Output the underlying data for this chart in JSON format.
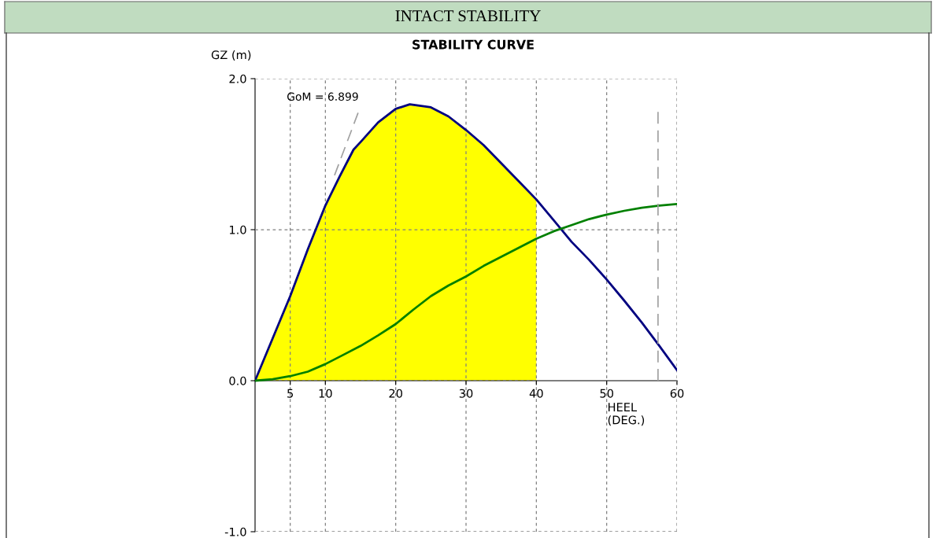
{
  "chart_data": {
    "type": "line",
    "title": "INTACT STABILITY",
    "subtitle": "STABILITY CURVE",
    "xlabel": "HEEL\n(DEG.)",
    "ylabel": "GZ (m)",
    "annotations": [
      "GoM = 6.899"
    ],
    "series": [
      {
        "type": "area",
        "color": "#ffff00",
        "x": [
          0,
          2.5,
          5,
          7.5,
          10,
          12,
          14,
          15,
          17.5,
          20,
          22,
          25,
          27.5,
          30,
          32.5,
          35,
          37.5,
          40
        ],
        "values": [
          0,
          0.28,
          0.56,
          0.87,
          1.16,
          1.35,
          1.53,
          1.58,
          1.71,
          1.8,
          1.83,
          1.81,
          1.75,
          1.66,
          1.56,
          1.44,
          1.32,
          1.2
        ]
      },
      {
        "color": "#000080",
        "x": [
          0,
          2.5,
          5,
          7.5,
          10,
          12,
          14,
          15,
          17.5,
          20,
          22,
          25,
          27.5,
          30,
          32.5,
          35,
          37.5,
          40,
          42.5,
          45,
          47.5,
          50,
          52.5,
          55,
          57.5,
          60
        ],
        "values": [
          0,
          0.28,
          0.56,
          0.87,
          1.16,
          1.35,
          1.53,
          1.58,
          1.71,
          1.8,
          1.83,
          1.81,
          1.75,
          1.66,
          1.56,
          1.44,
          1.32,
          1.2,
          1.06,
          0.92,
          0.8,
          0.67,
          0.53,
          0.385,
          0.23,
          0.07
        ]
      },
      {
        "color": "#008000",
        "x": [
          0,
          2.5,
          5,
          7.5,
          10,
          12.5,
          15,
          17.5,
          20,
          22.5,
          25,
          27.5,
          30,
          32.5,
          35,
          37.5,
          40,
          42.5,
          45,
          47.5,
          50,
          52.5,
          55,
          57.5,
          60
        ],
        "values": [
          0,
          0.01,
          0.03,
          0.06,
          0.11,
          0.17,
          0.23,
          0.3,
          0.375,
          0.47,
          0.56,
          0.63,
          0.69,
          0.76,
          0.82,
          0.88,
          0.94,
          0.99,
          1.03,
          1.07,
          1.1,
          1.125,
          1.145,
          1.16,
          1.17
        ]
      },
      {
        "type": "line",
        "color": "#a0a0a0",
        "line_style": "dashed",
        "x": [
          11.3,
          14.7
        ],
        "values": [
          1.36,
          1.78
        ]
      },
      {
        "type": "line",
        "color": "#a0a0a0",
        "line_style": "dashed",
        "x": [
          57.3,
          57.3
        ],
        "values": [
          0,
          1.78
        ]
      }
    ],
    "xlim": [
      0,
      60
    ],
    "ylim": [
      -1,
      2
    ],
    "xticks": [
      5,
      10,
      20,
      30,
      40,
      50,
      60
    ],
    "yticks": [
      {
        "value": -1,
        "label": "-1.0"
      },
      {
        "value": 0,
        "label": "0.0"
      },
      {
        "value": 1,
        "label": "1.0"
      },
      {
        "value": 2,
        "label": "2.0"
      }
    ],
    "grid": true,
    "marker": "none",
    "line_style": "solid"
  }
}
